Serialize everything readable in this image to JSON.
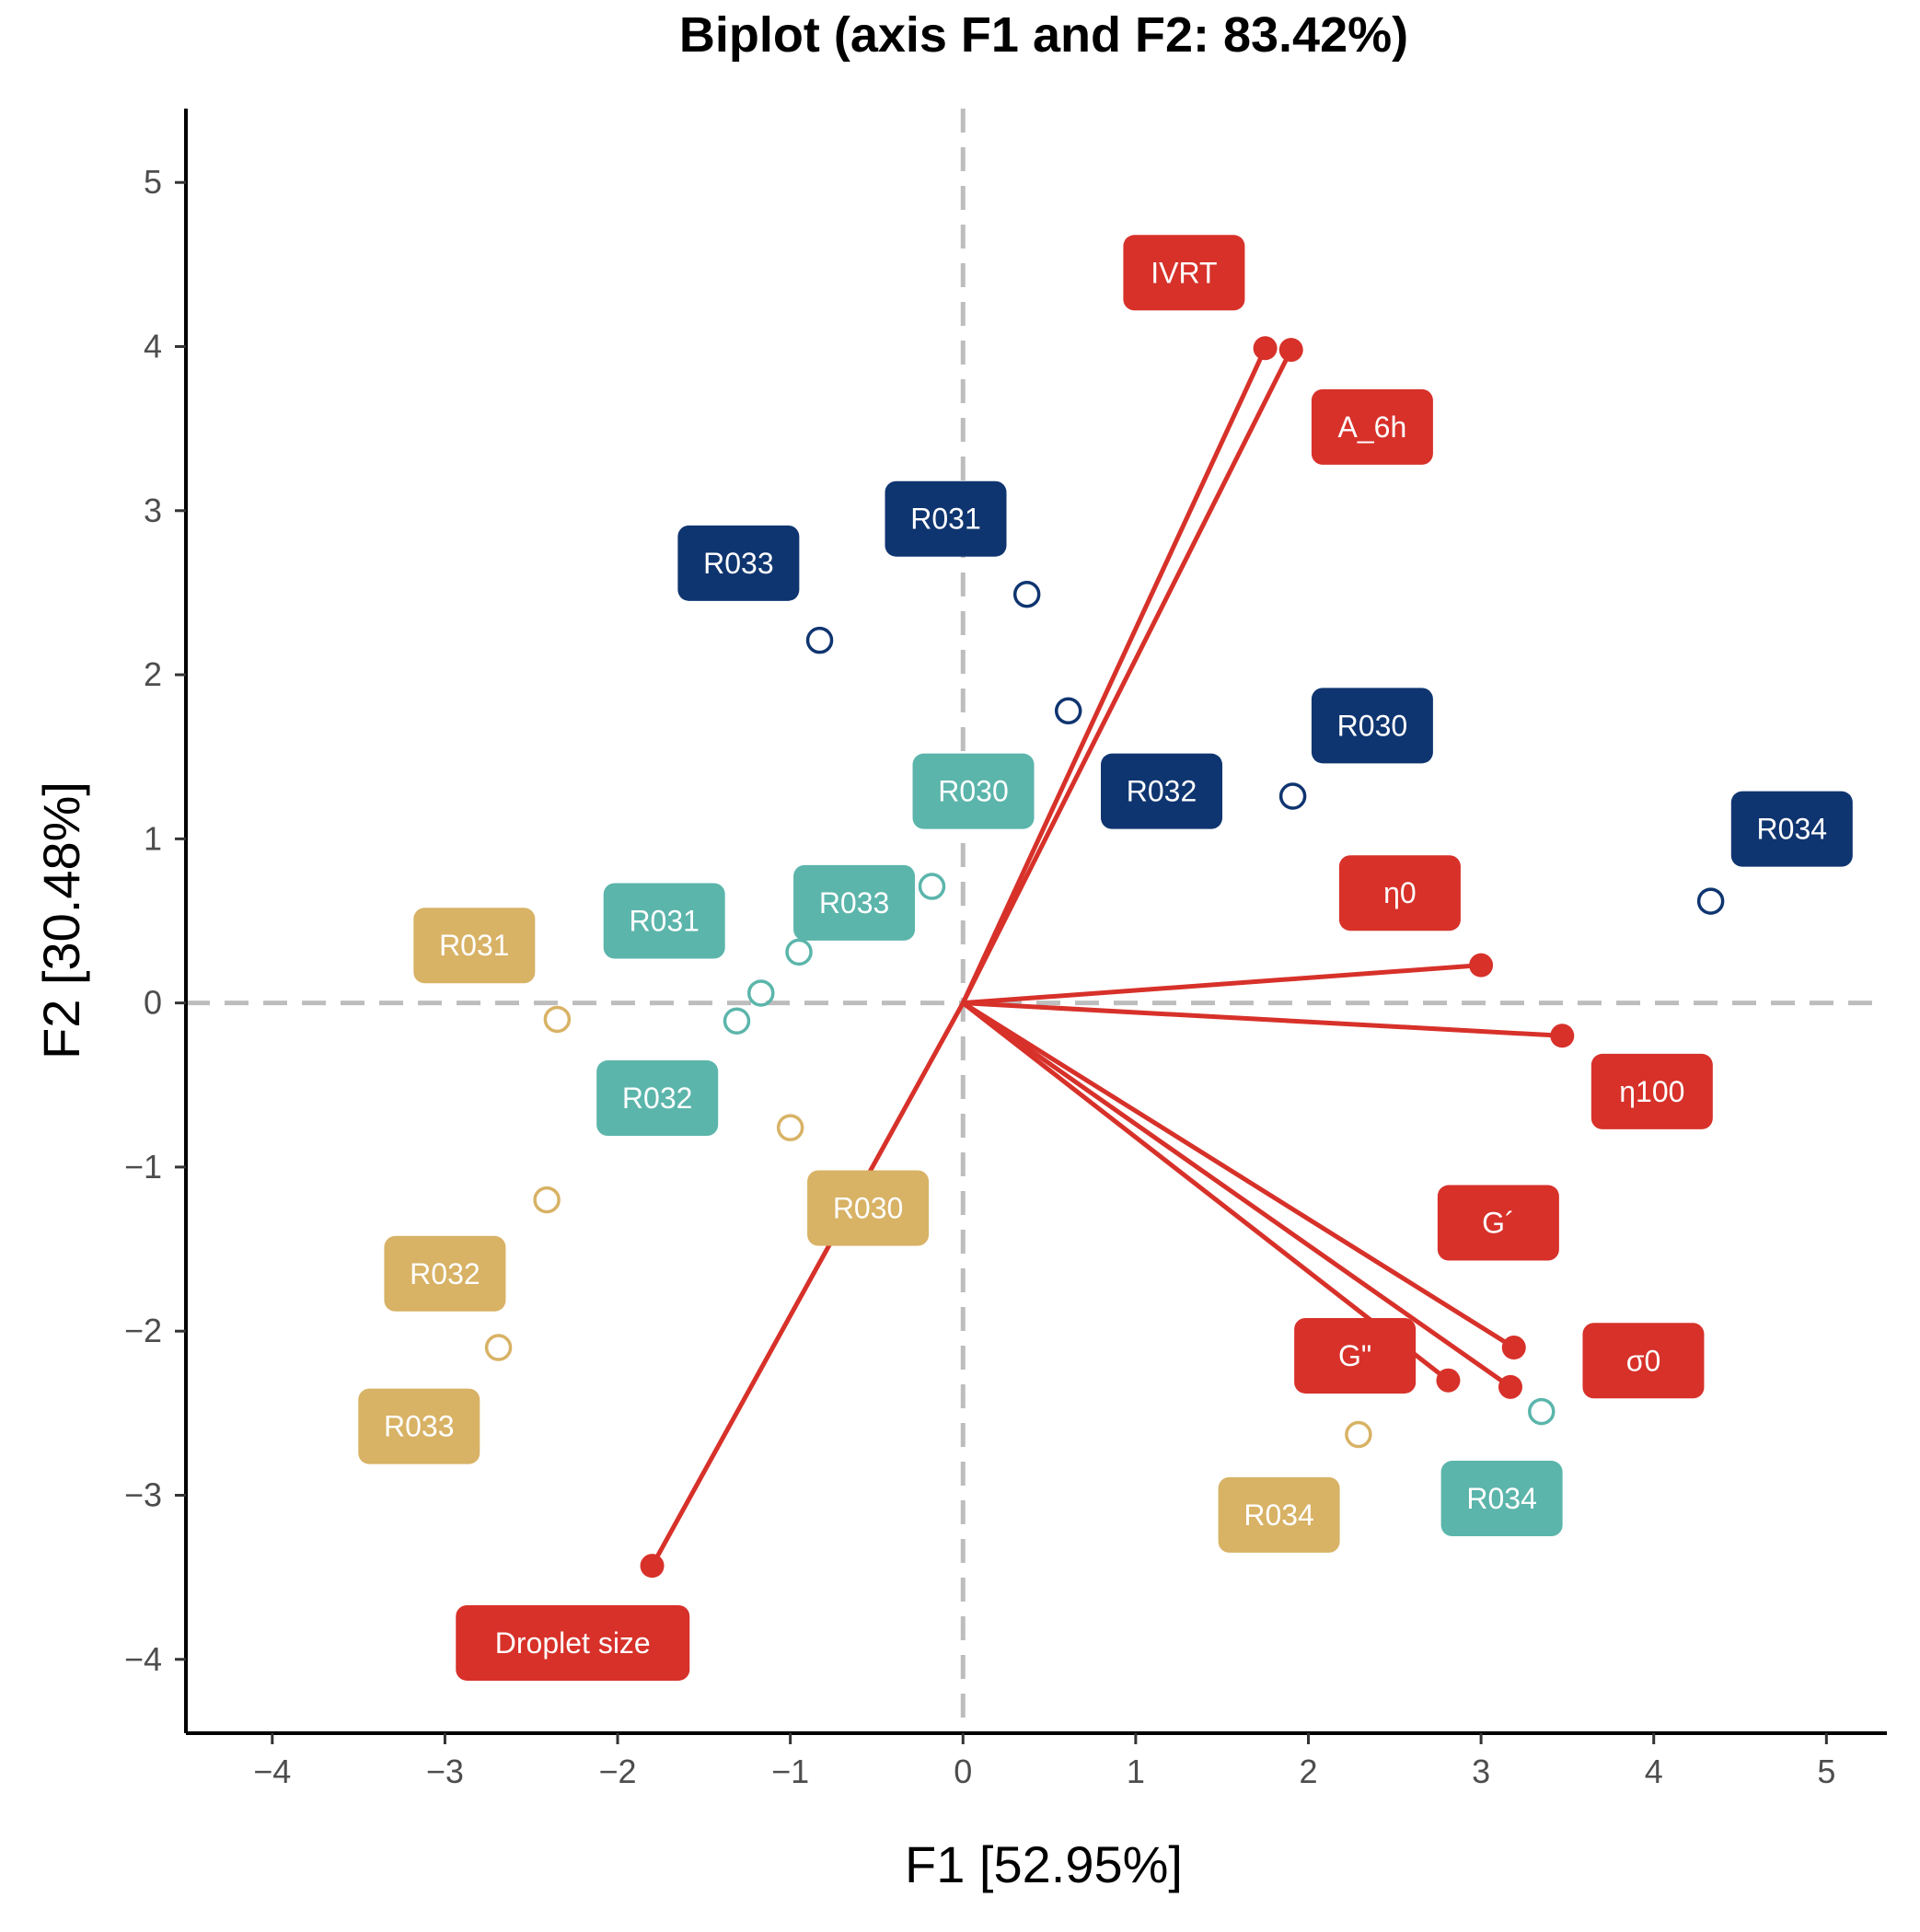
{
  "chart_data": {
    "type": "scatter",
    "subtype": "pca-biplot",
    "title": "Biplot (axis F1 and F2: 83.42%)",
    "xlabel": "F1 [52.95%]",
    "ylabel": "F2 [30.48%]",
    "xlim": [
      -4.5,
      5.35
    ],
    "ylim": [
      -4.45,
      5.45
    ],
    "xticks": [
      -4,
      -3,
      -2,
      -1,
      0,
      1,
      2,
      3,
      4,
      5
    ],
    "yticks": [
      -4,
      -3,
      -2,
      -1,
      0,
      1,
      2,
      3,
      4,
      5
    ],
    "xtick_labels": [
      "−4",
      "−3",
      "−2",
      "−1",
      "0",
      "1",
      "2",
      "3",
      "4",
      "5"
    ],
    "ytick_labels": [
      "−4",
      "−3",
      "−2",
      "−1",
      "0",
      "1",
      "2",
      "3",
      "4",
      "5"
    ],
    "reference_lines": {
      "x": 0,
      "y": 0,
      "style": "dashed"
    },
    "colors": {
      "variables": "#d7312a",
      "navy": "#0f3570",
      "teal": "#5bb5ab",
      "gold": "#d8b265",
      "reference": "#bdbdbd",
      "label_text": "#ffffff"
    },
    "series": [
      {
        "name": "navy",
        "color": "#0f3570",
        "points": [
          {
            "label": "R033",
            "x": -0.83,
            "y": 2.21,
            "lx": -1.3,
            "ly": 2.68
          },
          {
            "label": "R031",
            "x": 0.37,
            "y": 2.49,
            "lx": -0.1,
            "ly": 2.95
          },
          {
            "label": "R030",
            "x": 1.91,
            "y": 1.26,
            "lx": 2.37,
            "ly": 1.69
          },
          {
            "label": "R032",
            "x": 0.61,
            "y": 1.78,
            "lx": 1.15,
            "ly": 1.29
          },
          {
            "label": "R034",
            "x": 4.33,
            "y": 0.62,
            "lx": 4.8,
            "ly": 1.06
          }
        ]
      },
      {
        "name": "teal",
        "color": "#5bb5ab",
        "points": [
          {
            "label": "R030",
            "x": -0.18,
            "y": 0.71,
            "lx": 0.06,
            "ly": 1.29
          },
          {
            "label": "R031",
            "x": -1.17,
            "y": 0.06,
            "lx": -1.73,
            "ly": 0.5
          },
          {
            "label": "R033",
            "x": -0.95,
            "y": 0.31,
            "lx": -0.63,
            "ly": 0.61
          },
          {
            "label": "R032",
            "x": -1.31,
            "y": -0.11,
            "lx": -1.77,
            "ly": -0.58
          },
          {
            "label": "R034",
            "x": 3.35,
            "y": -2.49,
            "lx": 3.12,
            "ly": -3.02
          }
        ]
      },
      {
        "name": "gold",
        "color": "#d8b265",
        "points": [
          {
            "label": "R031",
            "x": -2.35,
            "y": -0.1,
            "lx": -2.83,
            "ly": 0.35
          },
          {
            "label": "R030",
            "x": -1.0,
            "y": -0.76,
            "lx": -0.55,
            "ly": -1.25
          },
          {
            "label": "R032",
            "x": -2.41,
            "y": -1.2,
            "lx": -3.0,
            "ly": -1.65
          },
          {
            "label": "R033",
            "x": -2.69,
            "y": -2.1,
            "lx": -3.15,
            "ly": -2.58
          },
          {
            "label": "R034",
            "x": 2.29,
            "y": -2.63,
            "lx": 1.83,
            "ly": -3.12
          }
        ]
      }
    ],
    "variables": [
      {
        "label": "IVRT",
        "x": 1.75,
        "y": 3.99,
        "lx": 1.28,
        "ly": 4.45
      },
      {
        "label": "A_6h",
        "x": 1.9,
        "y": 3.98,
        "lx": 2.37,
        "ly": 3.51
      },
      {
        "label": "η0",
        "x": 3.0,
        "y": 0.23,
        "lx": 2.53,
        "ly": 0.67
      },
      {
        "label": "η100",
        "x": 3.47,
        "y": -0.2,
        "lx": 3.99,
        "ly": -0.54
      },
      {
        "label": "G´",
        "x": 3.19,
        "y": -2.1,
        "lx": 3.1,
        "ly": -1.34
      },
      {
        "label": "G\"",
        "x": 2.81,
        "y": -2.3,
        "lx": 2.27,
        "ly": -2.15
      },
      {
        "label": "σ0",
        "x": 3.17,
        "y": -2.34,
        "lx": 3.94,
        "ly": -2.18
      },
      {
        "label": "Droplet size",
        "x": -1.8,
        "y": -3.43,
        "lx": -2.26,
        "ly": -3.9
      }
    ]
  }
}
